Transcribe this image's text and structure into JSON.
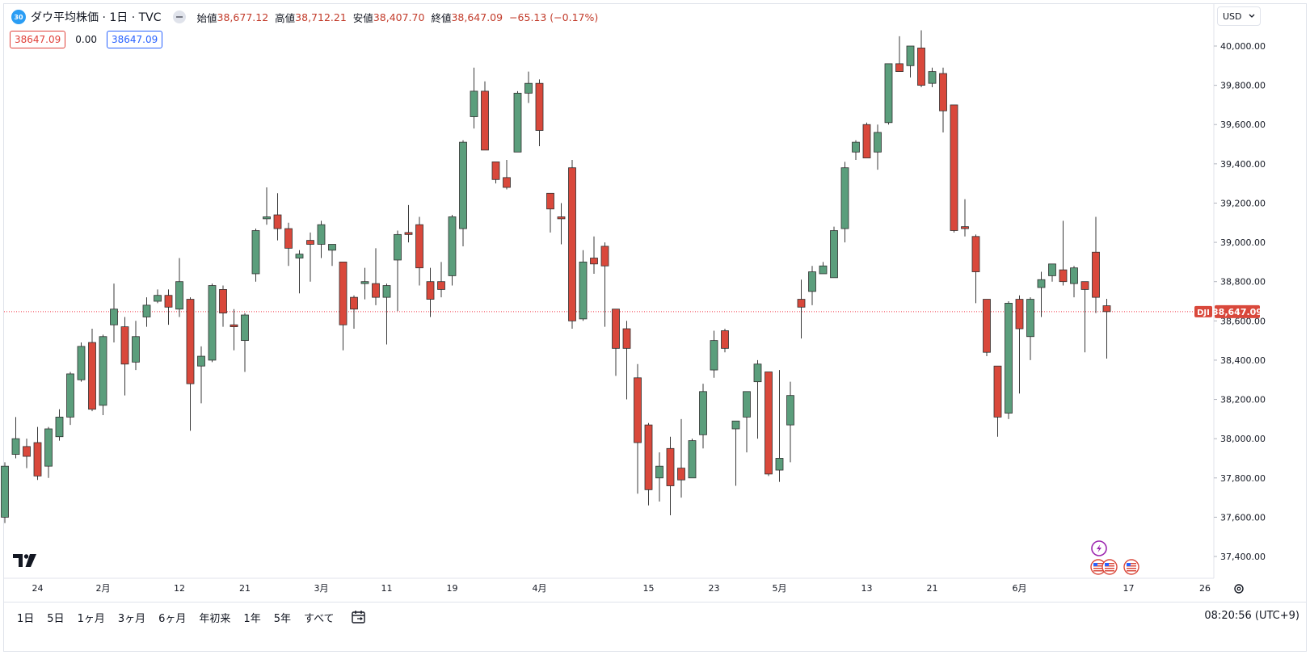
{
  "legend": {
    "badge": "30",
    "title": "ダウ平均株価 · 1日 · TVC",
    "open_label": "始値",
    "open": "38,677.12",
    "high_label": "高値",
    "high": "38,712.21",
    "low_label": "安値",
    "low": "38,407.70",
    "close_label": "終値",
    "close": "38,647.09",
    "change": "−65.13 (−0.17%)"
  },
  "price_row": {
    "sell": "38647.09",
    "spread": "0.00",
    "buy": "38647.09"
  },
  "currency": "USD",
  "last_price": {
    "symbol": "DJI",
    "value": "38,647.09"
  },
  "ranges": [
    "1日",
    "5日",
    "1ヶ月",
    "3ヶ月",
    "6ヶ月",
    "年初来",
    "1年",
    "5年",
    "すべて"
  ],
  "clock": "08:20:56 (UTC+9)",
  "colors": {
    "up": "#5b9e7c",
    "down": "#d9483b",
    "accent": "#2962ff",
    "last_line": "#f23645"
  },
  "icons": [
    "tv-logo-icon",
    "lightning-icon",
    "us-flag-icon",
    "settings-icon",
    "calendar-icon",
    "chevron-down-icon",
    "collapse-icon"
  ],
  "chart_data": {
    "type": "candlestick",
    "title": "ダウ平均株価 · 1日 · TVC",
    "ylim": [
      37280,
      40120
    ],
    "y_ticks": [
      "37,400.00",
      "37,600.00",
      "37,800.00",
      "38,000.00",
      "38,200.00",
      "38,400.00",
      "38,600.00",
      "38,800.00",
      "39,000.00",
      "39,200.00",
      "39,400.00",
      "39,600.00",
      "39,800.00",
      "40,000.00"
    ],
    "x_ticks": [
      {
        "label": "24",
        "date": "2024-01-24"
      },
      {
        "label": "2月",
        "date": "2024-02-01"
      },
      {
        "label": "12",
        "date": "2024-02-12"
      },
      {
        "label": "21",
        "date": "2024-02-21"
      },
      {
        "label": "3月",
        "date": "2024-03-01"
      },
      {
        "label": "11",
        "date": "2024-03-11"
      },
      {
        "label": "19",
        "date": "2024-03-19"
      },
      {
        "label": "4月",
        "date": "2024-04-01"
      },
      {
        "label": "15",
        "date": "2024-04-15"
      },
      {
        "label": "23",
        "date": "2024-04-23"
      },
      {
        "label": "5月",
        "date": "2024-05-01"
      },
      {
        "label": "13",
        "date": "2024-05-13"
      },
      {
        "label": "21",
        "date": "2024-05-21"
      },
      {
        "label": "6月",
        "date": "2024-06-03"
      },
      {
        "label": "17",
        "date": "2024-06-17"
      },
      {
        "label": "26",
        "date": "2024-06-26"
      }
    ],
    "candles": [
      {
        "date": "2024-01-19",
        "o": 37600,
        "h": 37880,
        "l": 37570,
        "c": 37860
      },
      {
        "date": "2024-01-22",
        "o": 37920,
        "h": 38110,
        "l": 37900,
        "c": 38000
      },
      {
        "date": "2024-01-23",
        "o": 37960,
        "h": 38000,
        "l": 37850,
        "c": 37910
      },
      {
        "date": "2024-01-24",
        "o": 37980,
        "h": 38060,
        "l": 37790,
        "c": 37810
      },
      {
        "date": "2024-01-25",
        "o": 37860,
        "h": 38060,
        "l": 37800,
        "c": 38050
      },
      {
        "date": "2024-01-26",
        "o": 38010,
        "h": 38150,
        "l": 37990,
        "c": 38110
      },
      {
        "date": "2024-01-29",
        "o": 38110,
        "h": 38340,
        "l": 38070,
        "c": 38330
      },
      {
        "date": "2024-01-30",
        "o": 38300,
        "h": 38490,
        "l": 38290,
        "c": 38470
      },
      {
        "date": "2024-01-31",
        "o": 38490,
        "h": 38560,
        "l": 38140,
        "c": 38150
      },
      {
        "date": "2024-02-01",
        "o": 38170,
        "h": 38530,
        "l": 38120,
        "c": 38520
      },
      {
        "date": "2024-02-02",
        "o": 38580,
        "h": 38790,
        "l": 38490,
        "c": 38660
      },
      {
        "date": "2024-02-05",
        "o": 38570,
        "h": 38620,
        "l": 38220,
        "c": 38380
      },
      {
        "date": "2024-02-06",
        "o": 38390,
        "h": 38600,
        "l": 38350,
        "c": 38520
      },
      {
        "date": "2024-02-07",
        "o": 38620,
        "h": 38720,
        "l": 38570,
        "c": 38680
      },
      {
        "date": "2024-02-08",
        "o": 38700,
        "h": 38760,
        "l": 38690,
        "c": 38730
      },
      {
        "date": "2024-02-09",
        "o": 38730,
        "h": 38760,
        "l": 38580,
        "c": 38670
      },
      {
        "date": "2024-02-12",
        "o": 38660,
        "h": 38920,
        "l": 38620,
        "c": 38800
      },
      {
        "date": "2024-02-13",
        "o": 38710,
        "h": 38720,
        "l": 38040,
        "c": 38280
      },
      {
        "date": "2024-02-14",
        "o": 38370,
        "h": 38470,
        "l": 38180,
        "c": 38420
      },
      {
        "date": "2024-02-15",
        "o": 38400,
        "h": 38790,
        "l": 38390,
        "c": 38780
      },
      {
        "date": "2024-02-16",
        "o": 38760,
        "h": 38780,
        "l": 38570,
        "c": 38640
      },
      {
        "date": "2024-02-20",
        "o": 38580,
        "h": 38660,
        "l": 38450,
        "c": 38570
      },
      {
        "date": "2024-02-21",
        "o": 38500,
        "h": 38640,
        "l": 38340,
        "c": 38630
      },
      {
        "date": "2024-02-22",
        "o": 38840,
        "h": 39070,
        "l": 38800,
        "c": 39060
      },
      {
        "date": "2024-02-23",
        "o": 39120,
        "h": 39280,
        "l": 39090,
        "c": 39130
      },
      {
        "date": "2024-02-26",
        "o": 39140,
        "h": 39250,
        "l": 39010,
        "c": 39070
      },
      {
        "date": "2024-02-27",
        "o": 39070,
        "h": 39100,
        "l": 38880,
        "c": 38970
      },
      {
        "date": "2024-02-28",
        "o": 38920,
        "h": 38960,
        "l": 38740,
        "c": 38940
      },
      {
        "date": "2024-02-29",
        "o": 39010,
        "h": 39050,
        "l": 38800,
        "c": 38990
      },
      {
        "date": "2024-03-01",
        "o": 38990,
        "h": 39110,
        "l": 38920,
        "c": 39090
      },
      {
        "date": "2024-03-04",
        "o": 38960,
        "h": 38980,
        "l": 38880,
        "c": 38990
      },
      {
        "date": "2024-03-05",
        "o": 38900,
        "h": 38900,
        "l": 38450,
        "c": 38580
      },
      {
        "date": "2024-03-06",
        "o": 38720,
        "h": 38730,
        "l": 38560,
        "c": 38660
      },
      {
        "date": "2024-03-07",
        "o": 38790,
        "h": 38870,
        "l": 38710,
        "c": 38800
      },
      {
        "date": "2024-03-08",
        "o": 38790,
        "h": 38970,
        "l": 38680,
        "c": 38720
      },
      {
        "date": "2024-03-11",
        "o": 38720,
        "h": 38790,
        "l": 38480,
        "c": 38780
      },
      {
        "date": "2024-03-12",
        "o": 38910,
        "h": 39060,
        "l": 38650,
        "c": 39040
      },
      {
        "date": "2024-03-13",
        "o": 39050,
        "h": 39190,
        "l": 39000,
        "c": 39040
      },
      {
        "date": "2024-03-14",
        "o": 39090,
        "h": 39130,
        "l": 38780,
        "c": 38870
      },
      {
        "date": "2024-03-15",
        "o": 38800,
        "h": 38870,
        "l": 38620,
        "c": 38710
      },
      {
        "date": "2024-03-18",
        "o": 38800,
        "h": 38900,
        "l": 38720,
        "c": 38760
      },
      {
        "date": "2024-03-19",
        "o": 38830,
        "h": 39140,
        "l": 38780,
        "c": 39130
      },
      {
        "date": "2024-03-20",
        "o": 39070,
        "h": 39520,
        "l": 38980,
        "c": 39510
      },
      {
        "date": "2024-03-21",
        "o": 39640,
        "h": 39890,
        "l": 39580,
        "c": 39770
      },
      {
        "date": "2024-03-22",
        "o": 39770,
        "h": 39820,
        "l": 39470,
        "c": 39470
      },
      {
        "date": "2024-03-25",
        "o": 39410,
        "h": 39410,
        "l": 39300,
        "c": 39320
      },
      {
        "date": "2024-03-26",
        "o": 39330,
        "h": 39420,
        "l": 39270,
        "c": 39280
      },
      {
        "date": "2024-03-27",
        "o": 39460,
        "h": 39770,
        "l": 39460,
        "c": 39760
      },
      {
        "date": "2024-03-28",
        "o": 39760,
        "h": 39870,
        "l": 39710,
        "c": 39810
      },
      {
        "date": "2024-04-01",
        "o": 39810,
        "h": 39830,
        "l": 39490,
        "c": 39570
      },
      {
        "date": "2024-04-02",
        "o": 39250,
        "h": 39250,
        "l": 39050,
        "c": 39170
      },
      {
        "date": "2024-04-03",
        "o": 39130,
        "h": 39200,
        "l": 38990,
        "c": 39120
      },
      {
        "date": "2024-04-04",
        "o": 39380,
        "h": 39420,
        "l": 38560,
        "c": 38600
      },
      {
        "date": "2024-04-05",
        "o": 38610,
        "h": 38960,
        "l": 38600,
        "c": 38900
      },
      {
        "date": "2024-04-08",
        "o": 38920,
        "h": 39030,
        "l": 38840,
        "c": 38890
      },
      {
        "date": "2024-04-09",
        "o": 38980,
        "h": 39000,
        "l": 38570,
        "c": 38880
      },
      {
        "date": "2024-04-10",
        "o": 38660,
        "h": 38660,
        "l": 38320,
        "c": 38460
      },
      {
        "date": "2024-04-11",
        "o": 38560,
        "h": 38600,
        "l": 38200,
        "c": 38460
      },
      {
        "date": "2024-04-12",
        "o": 38310,
        "h": 38380,
        "l": 37720,
        "c": 37980
      },
      {
        "date": "2024-04-15",
        "o": 38070,
        "h": 38080,
        "l": 37660,
        "c": 37740
      },
      {
        "date": "2024-04-16",
        "o": 37800,
        "h": 37930,
        "l": 37680,
        "c": 37860
      },
      {
        "date": "2024-04-17",
        "o": 37950,
        "h": 38010,
        "l": 37610,
        "c": 37760
      },
      {
        "date": "2024-04-18",
        "o": 37850,
        "h": 38100,
        "l": 37700,
        "c": 37790
      },
      {
        "date": "2024-04-19",
        "o": 37800,
        "h": 38000,
        "l": 37800,
        "c": 37990
      },
      {
        "date": "2024-04-22",
        "o": 38020,
        "h": 38280,
        "l": 37950,
        "c": 38240
      },
      {
        "date": "2024-04-23",
        "o": 38350,
        "h": 38550,
        "l": 38310,
        "c": 38500
      },
      {
        "date": "2024-04-24",
        "o": 38550,
        "h": 38560,
        "l": 38440,
        "c": 38460
      },
      {
        "date": "2024-04-25",
        "o": 38050,
        "h": 38090,
        "l": 37760,
        "c": 38090
      },
      {
        "date": "2024-04-26",
        "o": 38110,
        "h": 38240,
        "l": 37930,
        "c": 38240
      },
      {
        "date": "2024-04-29",
        "o": 38290,
        "h": 38400,
        "l": 38000,
        "c": 38380
      },
      {
        "date": "2024-04-30",
        "o": 38340,
        "h": 38340,
        "l": 37810,
        "c": 37820
      },
      {
        "date": "2024-05-01",
        "o": 37840,
        "h": 38350,
        "l": 37780,
        "c": 37900
      },
      {
        "date": "2024-05-02",
        "o": 38070,
        "h": 38290,
        "l": 37880,
        "c": 38220
      },
      {
        "date": "2024-05-03",
        "o": 38710,
        "h": 38810,
        "l": 38510,
        "c": 38670
      },
      {
        "date": "2024-05-06",
        "o": 38750,
        "h": 38880,
        "l": 38680,
        "c": 38850
      },
      {
        "date": "2024-05-07",
        "o": 38840,
        "h": 38900,
        "l": 38840,
        "c": 38880
      },
      {
        "date": "2024-05-08",
        "o": 38820,
        "h": 39080,
        "l": 38830,
        "c": 39060
      },
      {
        "date": "2024-05-09",
        "o": 39070,
        "h": 39410,
        "l": 39000,
        "c": 39380
      },
      {
        "date": "2024-05-10",
        "o": 39460,
        "h": 39520,
        "l": 39420,
        "c": 39510
      },
      {
        "date": "2024-05-13",
        "o": 39600,
        "h": 39610,
        "l": 39440,
        "c": 39430
      },
      {
        "date": "2024-05-14",
        "o": 39460,
        "h": 39600,
        "l": 39370,
        "c": 39560
      },
      {
        "date": "2024-05-15",
        "o": 39610,
        "h": 39910,
        "l": 39600,
        "c": 39910
      },
      {
        "date": "2024-05-16",
        "o": 39910,
        "h": 40050,
        "l": 39870,
        "c": 39870
      },
      {
        "date": "2024-05-17",
        "o": 39900,
        "h": 40000,
        "l": 39840,
        "c": 40000
      },
      {
        "date": "2024-05-20",
        "o": 39990,
        "h": 40080,
        "l": 39790,
        "c": 39800
      },
      {
        "date": "2024-05-21",
        "o": 39810,
        "h": 39890,
        "l": 39790,
        "c": 39870
      },
      {
        "date": "2024-05-22",
        "o": 39860,
        "h": 39890,
        "l": 39560,
        "c": 39670
      },
      {
        "date": "2024-05-23",
        "o": 39700,
        "h": 39700,
        "l": 39050,
        "c": 39060
      },
      {
        "date": "2024-05-24",
        "o": 39080,
        "h": 39220,
        "l": 39030,
        "c": 39070
      },
      {
        "date": "2024-05-28",
        "o": 39030,
        "h": 39040,
        "l": 38690,
        "c": 38850
      },
      {
        "date": "2024-05-29",
        "o": 38710,
        "h": 38710,
        "l": 38420,
        "c": 38440
      },
      {
        "date": "2024-05-30",
        "o": 38370,
        "h": 38370,
        "l": 38010,
        "c": 38110
      },
      {
        "date": "2024-05-31",
        "o": 38130,
        "h": 38700,
        "l": 38100,
        "c": 38690
      },
      {
        "date": "2024-06-03",
        "o": 38710,
        "h": 38730,
        "l": 38230,
        "c": 38560
      },
      {
        "date": "2024-06-04",
        "o": 38520,
        "h": 38720,
        "l": 38400,
        "c": 38710
      },
      {
        "date": "2024-06-05",
        "o": 38770,
        "h": 38850,
        "l": 38620,
        "c": 38810
      },
      {
        "date": "2024-06-06",
        "o": 38830,
        "h": 38880,
        "l": 38800,
        "c": 38890
      },
      {
        "date": "2024-06-07",
        "o": 38860,
        "h": 39110,
        "l": 38780,
        "c": 38800
      },
      {
        "date": "2024-06-10",
        "o": 38790,
        "h": 38880,
        "l": 38720,
        "c": 38870
      },
      {
        "date": "2024-06-11",
        "o": 38800,
        "h": 38800,
        "l": 38440,
        "c": 38760
      },
      {
        "date": "2024-06-12",
        "o": 38950,
        "h": 39130,
        "l": 38640,
        "c": 38720
      },
      {
        "date": "2024-06-13",
        "o": 38677.12,
        "h": 38712.21,
        "l": 38407.7,
        "c": 38647.09
      }
    ]
  }
}
